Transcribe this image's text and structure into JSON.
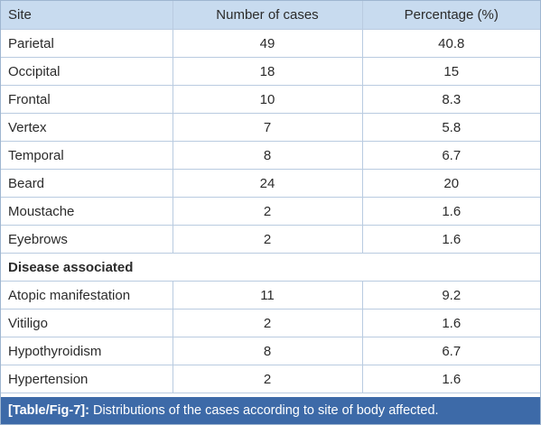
{
  "table": {
    "header": [
      "Site",
      "Number of cases",
      "Percentage (%)"
    ],
    "rows": [
      [
        "Parietal",
        "49",
        "40.8"
      ],
      [
        "Occipital",
        "18",
        "15"
      ],
      [
        "Frontal",
        "10",
        "8.3"
      ],
      [
        "Vertex",
        "7",
        "5.8"
      ],
      [
        "Temporal",
        "8",
        "6.7"
      ],
      [
        "Beard",
        "24",
        "20"
      ],
      [
        "Moustache",
        "2",
        "1.6"
      ],
      [
        "Eyebrows",
        "2",
        "1.6"
      ],
      [
        "Disease associated"
      ],
      [
        "Atopic manifestation",
        "11",
        "9.2"
      ],
      [
        "Vitiligo",
        "2",
        "1.6"
      ],
      [
        "Hypothyroidism",
        "8",
        "6.7"
      ],
      [
        "Hypertension",
        "2",
        "1.6"
      ]
    ]
  },
  "caption": {
    "label": "[Table/Fig-7]:",
    "text": "Distributions of the cases according to site of body affected."
  }
}
